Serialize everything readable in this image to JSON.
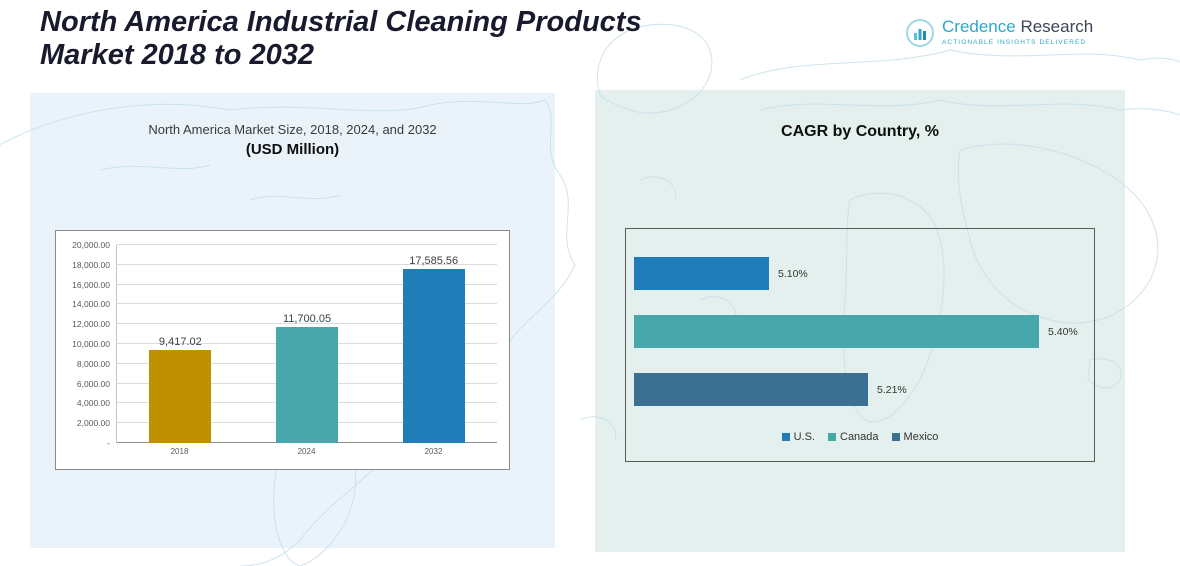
{
  "header": {
    "title_line1": "North America Industrial Cleaning Products",
    "title_line2": "Market 2018 to 2032",
    "logo": {
      "brand_first": "Credence",
      "brand_second": "Research",
      "tagline": "Actionable Insights Delivered"
    }
  },
  "left_panel": {
    "subtitle_line1": "North America Market Size, 2018, 2024, and 2032",
    "subtitle_line2": "(USD Million)"
  },
  "right_panel": {
    "title": "CAGR by Country, %"
  },
  "colors": {
    "gold_bar": "#BF9000",
    "teal_bar": "#48A7AA",
    "blue_bar": "#1F7EB8",
    "steel_bar": "#3B7092",
    "left_panel_bg": "#EAF3F9",
    "right_panel_bg": "#E3F0EE",
    "brand_teal": "#2AA9C7",
    "map_line": "#C6DFEA"
  },
  "chart_data": [
    {
      "type": "bar",
      "title": "North America Market Size, 2018, 2024, and 2032 (USD Million)",
      "categories": [
        "2018",
        "2024",
        "2032"
      ],
      "values": [
        9417.02,
        11700.05,
        17585.56
      ],
      "value_labels": [
        "9,417.02",
        "11,700.05",
        "17,585.56"
      ],
      "bar_colors": [
        "#BF9000",
        "#48A7AA",
        "#1F7EB8"
      ],
      "xlabel": "",
      "ylabel": "",
      "ylim": [
        0,
        20000
      ],
      "ytick_step": 2000,
      "ytick_labels_top_to_bottom": [
        "20,000.00",
        "18,000.00",
        "16,000.00",
        "14,000.00",
        "12,000.00",
        "10,000.00",
        "8,000.00",
        "6,000.00",
        "4,000.00",
        "2,000.00",
        "-"
      ],
      "grid": true,
      "legend_position": "none"
    },
    {
      "type": "bar",
      "orientation": "horizontal",
      "title": "CAGR by Country, %",
      "categories": [
        "U.S.",
        "Canada",
        "Mexico"
      ],
      "values": [
        5.1,
        5.4,
        5.21
      ],
      "value_labels": [
        "5.10%",
        "5.40%",
        "5.21%"
      ],
      "bar_colors": [
        "#1F7EB8",
        "#48A7AA",
        "#3B7092"
      ],
      "xlim": [
        4.95,
        5.45
      ],
      "grid": false,
      "legend_position": "bottom",
      "legend": [
        "U.S.",
        "Canada",
        "Mexico"
      ]
    }
  ]
}
